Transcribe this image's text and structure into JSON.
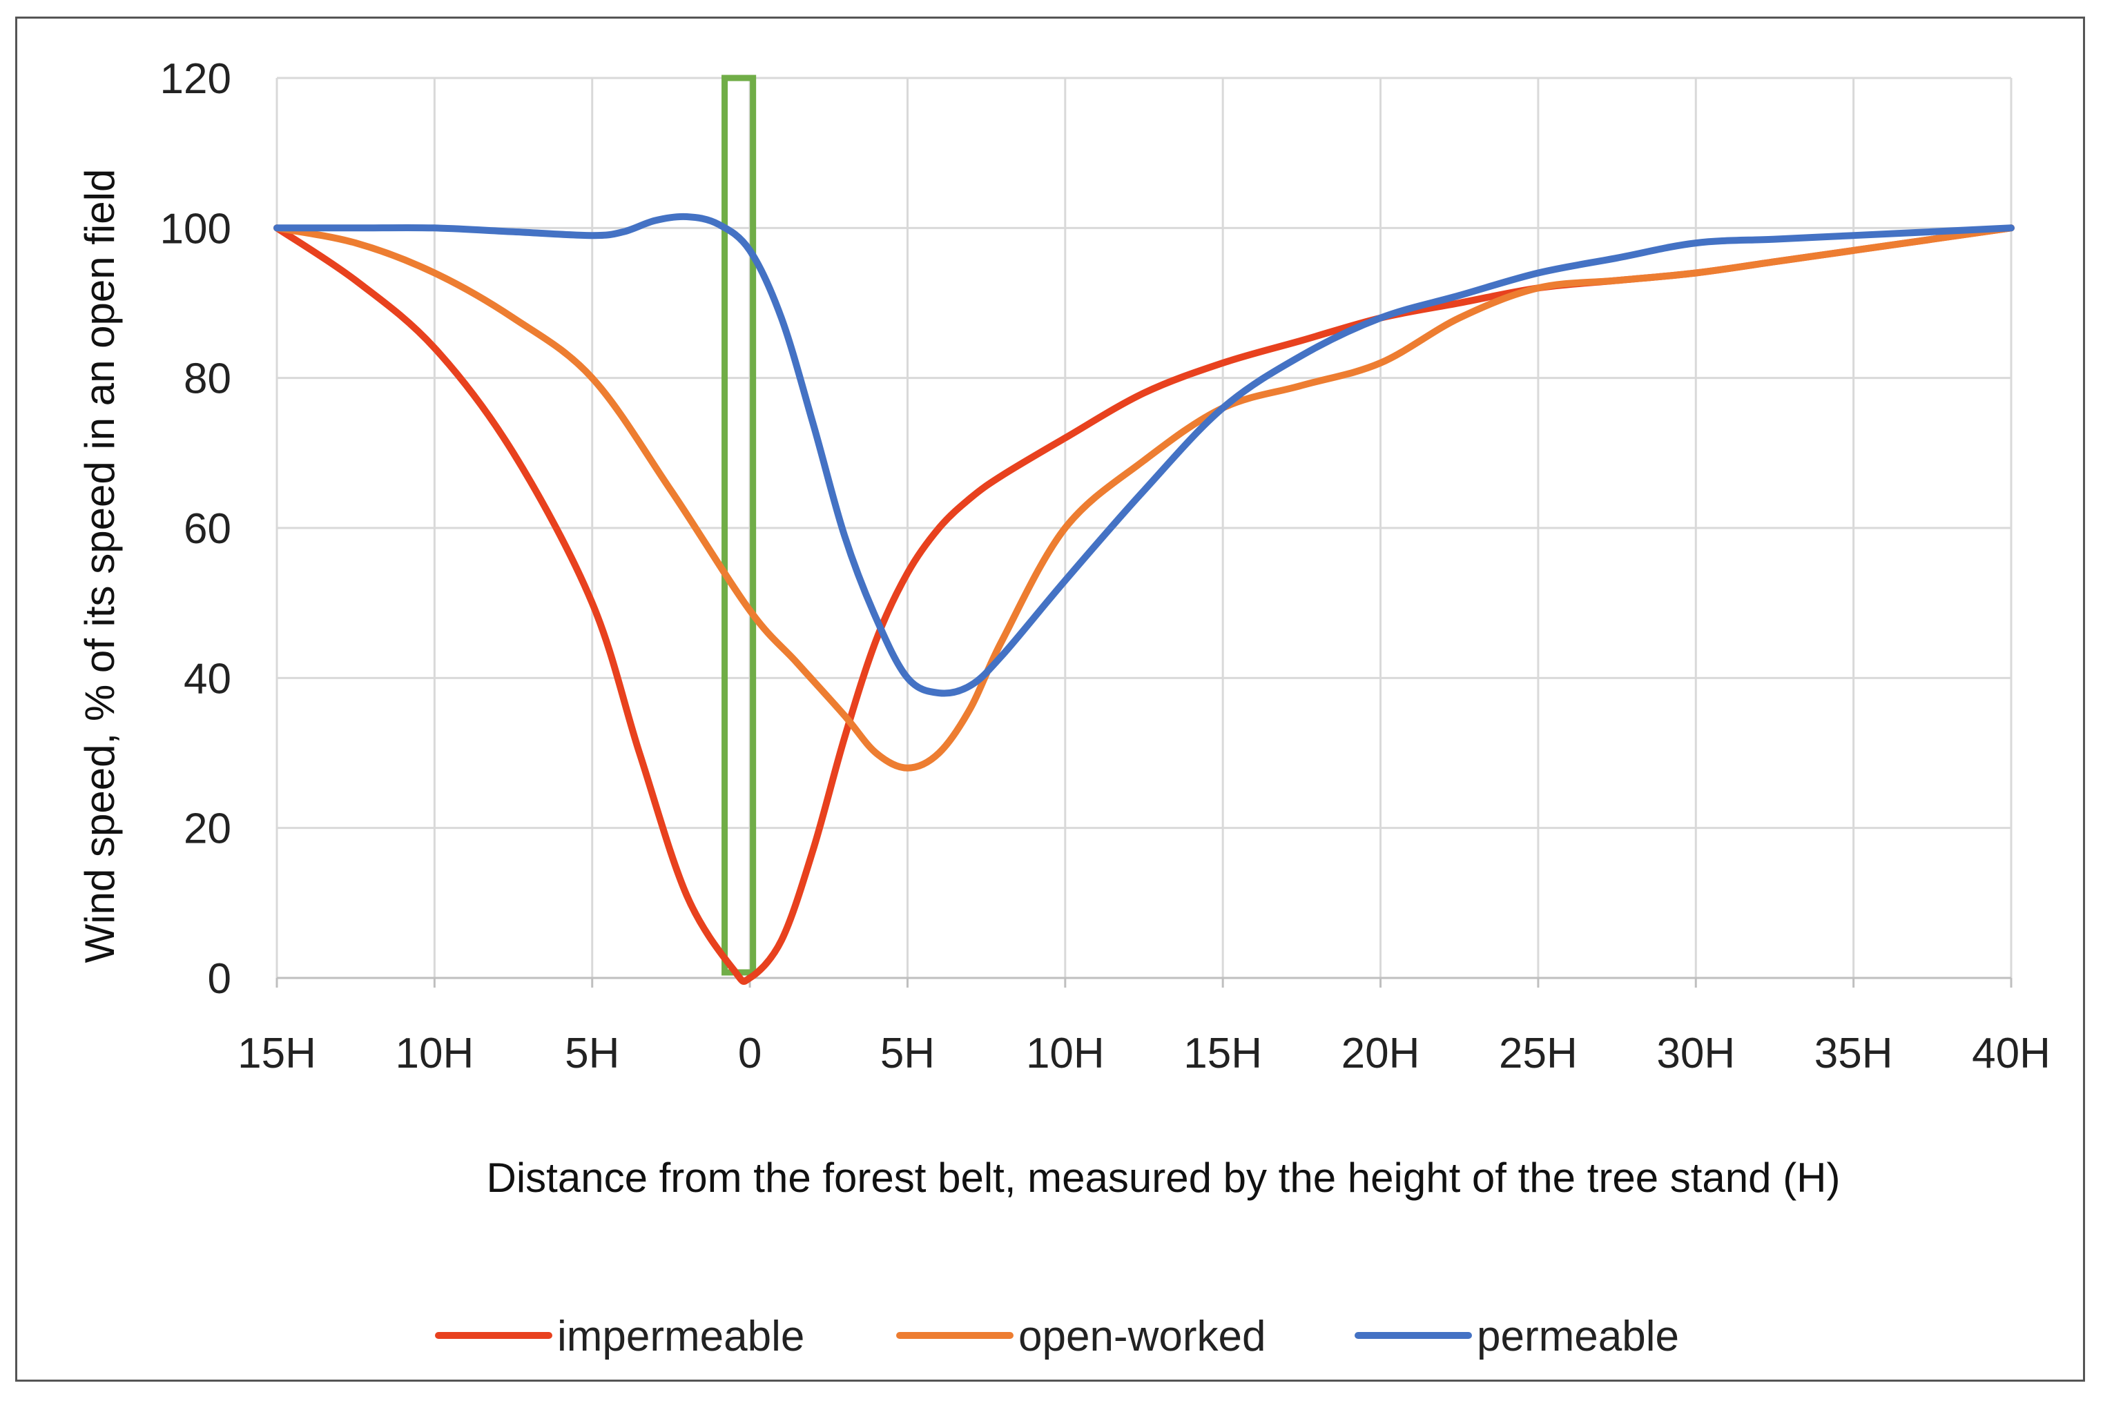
{
  "chart_data": {
    "type": "line",
    "title": "",
    "xlabel": "Distance from the forest belt, measured by the height of the tree stand (H)",
    "ylabel": "Wind speed, % of its speed in an open field",
    "x_tick_labels": [
      "15H",
      "10H",
      "5H",
      "0",
      "5H",
      "10H",
      "15H",
      "20H",
      "25H",
      "30H",
      "35H",
      "40H"
    ],
    "x_tick_values": [
      -15,
      -10,
      -5,
      0,
      5,
      10,
      15,
      20,
      25,
      30,
      35,
      40
    ],
    "xlim": [
      -15,
      40
    ],
    "ylim": [
      0,
      120
    ],
    "y_ticks": [
      0,
      20,
      40,
      60,
      80,
      100,
      120
    ],
    "grid": true,
    "legend_position": "bottom",
    "forest_belt": {
      "x_start": -0.8,
      "x_end": 0.1,
      "color": "#70AD47"
    },
    "series": [
      {
        "name": "impermeable",
        "color": "#E8411E",
        "x": [
          -15,
          -12.5,
          -10,
          -7.5,
          -5,
          -3.5,
          -2,
          -0.5,
          0,
          1,
          2,
          3,
          4,
          5,
          6,
          7,
          8,
          10,
          12.5,
          15,
          17.5,
          20,
          22.5,
          25,
          27.5,
          30,
          32.5,
          35,
          37.5,
          40
        ],
        "y": [
          100,
          93,
          84,
          70,
          50,
          30,
          11,
          1,
          0,
          5,
          17,
          32,
          45,
          54,
          60,
          64,
          67,
          72,
          78,
          82,
          85,
          88,
          90,
          92,
          93,
          94,
          95.5,
          97,
          98.5,
          100
        ]
      },
      {
        "name": "open-worked",
        "color": "#ED7D31",
        "x": [
          -15,
          -12.5,
          -10,
          -7.5,
          -5,
          -2.5,
          0,
          1.5,
          3,
          4,
          5,
          6,
          7,
          8,
          10,
          12.5,
          15,
          17.5,
          20,
          22.5,
          25,
          27.5,
          30,
          32.5,
          35,
          37.5,
          40
        ],
        "y": [
          100,
          98,
          94,
          88,
          80,
          65,
          49,
          42,
          35,
          30,
          28,
          30,
          36,
          45,
          60,
          69,
          76,
          79,
          82,
          88,
          92,
          93,
          94,
          95.5,
          97,
          98.5,
          100
        ]
      },
      {
        "name": "permeable",
        "color": "#4472C4",
        "x": [
          -15,
          -12.5,
          -10,
          -7.5,
          -5,
          -4,
          -3,
          -2,
          -1,
          0,
          1,
          2,
          3,
          4,
          5,
          6,
          7,
          8,
          10,
          12.5,
          15,
          17.5,
          20,
          22.5,
          25,
          27.5,
          30,
          32.5,
          35,
          37.5,
          40
        ],
        "y": [
          100,
          100,
          100,
          99.5,
          99,
          99.5,
          101,
          101.5,
          100.5,
          97,
          88,
          74,
          59,
          48,
          40,
          38,
          39,
          43,
          53,
          65,
          76,
          83,
          88,
          91,
          94,
          96,
          98,
          98.5,
          99,
          99.5,
          100
        ]
      }
    ]
  }
}
